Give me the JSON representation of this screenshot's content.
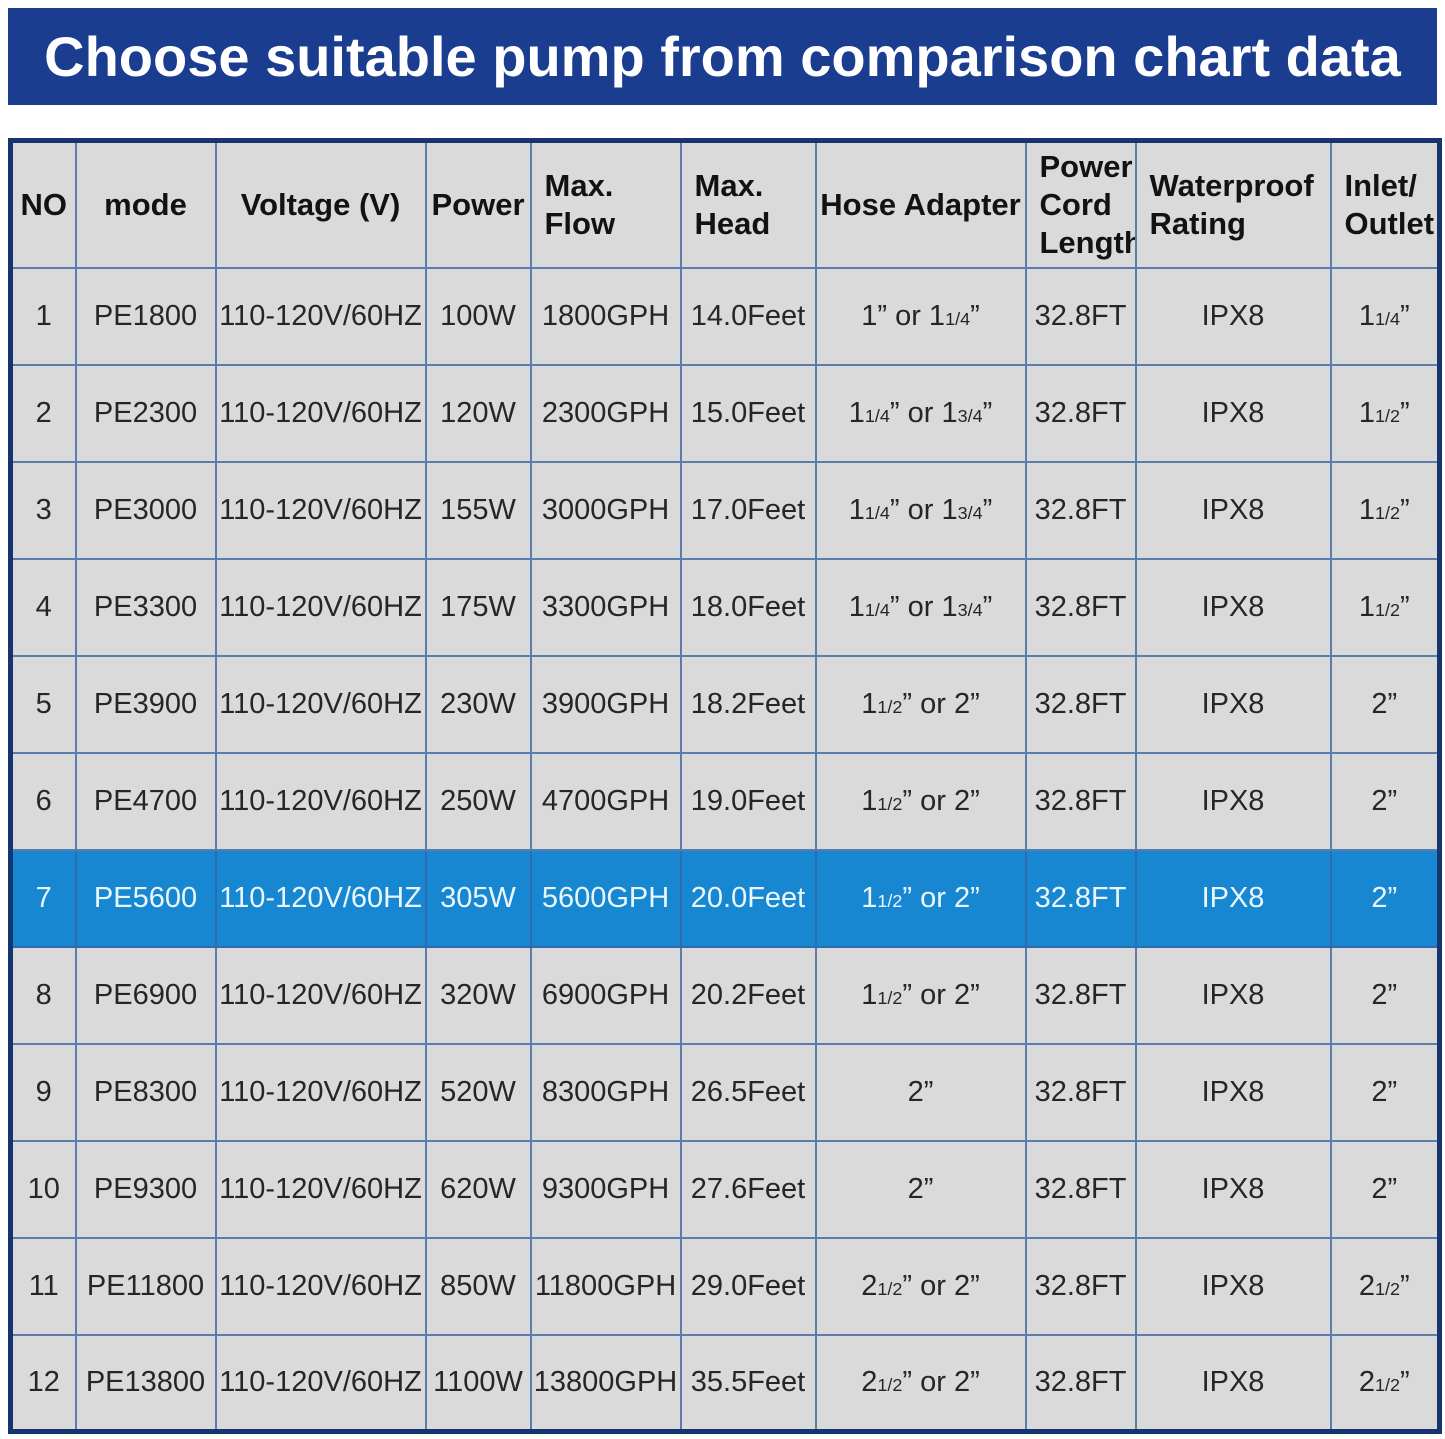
{
  "colors": {
    "page_bg": "#ffffff",
    "banner_bg": "#1b3d8f",
    "banner_text": "#ffffff",
    "cell_bg": "#d9dad9",
    "grid_line": "#5a7dab",
    "outer_border": "#16346d",
    "body_text": "#262626",
    "highlight_bg": "#1787d2",
    "highlight_text": "#eaf6fd",
    "highlight_border": "#2f6bad"
  },
  "chart_data": {
    "type": "table",
    "title": "Choose suitable pump from comparison chart data",
    "highlighted_row_model": "PE5600",
    "columns": [
      {
        "key": "no",
        "label": "NO",
        "align": "center"
      },
      {
        "key": "mode",
        "label": "mode",
        "align": "center"
      },
      {
        "key": "voltage",
        "label": "Voltage (V)",
        "align": "center"
      },
      {
        "key": "power",
        "label": "Power",
        "align": "center"
      },
      {
        "key": "max-flow",
        "label": "Max.\nFlow",
        "align": "left"
      },
      {
        "key": "max-head",
        "label": "Max.\nHead",
        "align": "left"
      },
      {
        "key": "hose-adapter",
        "label": "Hose Adapter",
        "align": "center"
      },
      {
        "key": "power-cord-length",
        "label": "Power\nCord\nLength",
        "align": "left"
      },
      {
        "key": "waterproof-rating",
        "label": "Waterproof\nRating",
        "align": "left"
      },
      {
        "key": "inlet-outlet",
        "label": "Inlet/\nOutlet",
        "align": "left"
      }
    ],
    "rows": [
      {
        "highlighted": false,
        "cells": [
          "1",
          "PE1800",
          "110-120V/60HZ",
          "100W",
          "1800GPH",
          "14.0Feet",
          "1” or 1{1/4}”",
          "32.8FT",
          "IPX8",
          "1{1/4}”"
        ]
      },
      {
        "highlighted": false,
        "cells": [
          "2",
          "PE2300",
          "110-120V/60HZ",
          "120W",
          "2300GPH",
          "15.0Feet",
          "1{1/4}” or 1{3/4}”",
          "32.8FT",
          "IPX8",
          "1{1/2}”"
        ]
      },
      {
        "highlighted": false,
        "cells": [
          "3",
          "PE3000",
          "110-120V/60HZ",
          "155W",
          "3000GPH",
          "17.0Feet",
          "1{1/4}” or 1{3/4}”",
          "32.8FT",
          "IPX8",
          "1{1/2}”"
        ]
      },
      {
        "highlighted": false,
        "cells": [
          "4",
          "PE3300",
          "110-120V/60HZ",
          "175W",
          "3300GPH",
          "18.0Feet",
          "1{1/4}” or 1{3/4}”",
          "32.8FT",
          "IPX8",
          "1{1/2}”"
        ]
      },
      {
        "highlighted": false,
        "cells": [
          "5",
          "PE3900",
          "110-120V/60HZ",
          "230W",
          "3900GPH",
          "18.2Feet",
          "1{1/2}” or 2”",
          "32.8FT",
          "IPX8",
          "2”"
        ]
      },
      {
        "highlighted": false,
        "cells": [
          "6",
          "PE4700",
          "110-120V/60HZ",
          "250W",
          "4700GPH",
          "19.0Feet",
          "1{1/2}” or 2”",
          "32.8FT",
          "IPX8",
          "2”"
        ]
      },
      {
        "highlighted": true,
        "cells": [
          "7",
          "PE5600",
          "110-120V/60HZ",
          "305W",
          "5600GPH",
          "20.0Feet",
          "1{1/2}” or 2”",
          "32.8FT",
          "IPX8",
          "2”"
        ]
      },
      {
        "highlighted": false,
        "cells": [
          "8",
          "PE6900",
          "110-120V/60HZ",
          "320W",
          "6900GPH",
          "20.2Feet",
          "1{1/2}” or 2”",
          "32.8FT",
          "IPX8",
          "2”"
        ]
      },
      {
        "highlighted": false,
        "cells": [
          "9",
          "PE8300",
          "110-120V/60HZ",
          "520W",
          "8300GPH",
          "26.5Feet",
          "2”",
          "32.8FT",
          "IPX8",
          "2”"
        ]
      },
      {
        "highlighted": false,
        "cells": [
          "10",
          "PE9300",
          "110-120V/60HZ",
          "620W",
          "9300GPH",
          "27.6Feet",
          "2”",
          "32.8FT",
          "IPX8",
          "2”"
        ]
      },
      {
        "highlighted": false,
        "cells": [
          "11",
          "PE11800",
          "110-120V/60HZ",
          "850W",
          "11800GPH",
          "29.0Feet",
          "2{1/2}” or 2”",
          "32.8FT",
          "IPX8",
          "2{1/2}”"
        ]
      },
      {
        "highlighted": false,
        "cells": [
          "12",
          "PE13800",
          "110-120V/60HZ",
          "1100W",
          "13800GPH",
          "35.5Feet",
          "2{1/2}” or 2”",
          "32.8FT",
          "IPX8",
          "2{1/2}”"
        ]
      }
    ]
  }
}
